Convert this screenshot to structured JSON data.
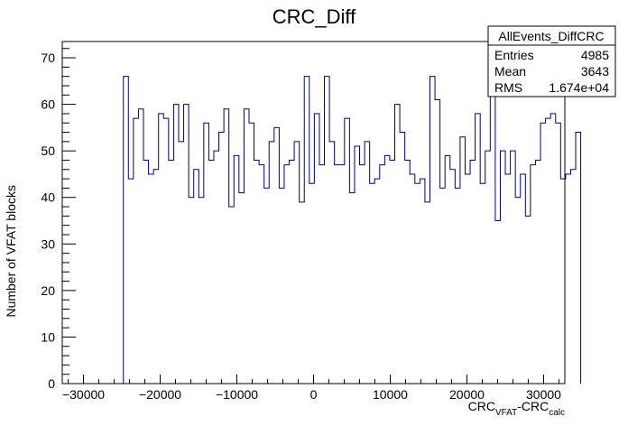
{
  "chart_data": {
    "type": "bar",
    "histogram": true,
    "title": "CRC_Diff",
    "xlabel": {
      "main": "CRC",
      "sub1": "VFAT",
      "mid": "-CRC",
      "sub2": "calc"
    },
    "ylabel": "Number of VFAT blocks",
    "xlim": [
      -32768,
      32768
    ],
    "ylim": [
      0,
      73.5
    ],
    "x_ticks": [
      -30000,
      -20000,
      -10000,
      0,
      10000,
      20000,
      30000
    ],
    "x_tick_labels": [
      "−30000",
      "−20000",
      "−10000",
      "0",
      "10000",
      "20000",
      "30000"
    ],
    "y_ticks": [
      0,
      10,
      20,
      30,
      40,
      50,
      60,
      70
    ],
    "y_tick_labels": [
      "0",
      "10",
      "20",
      "30",
      "40",
      "50",
      "60",
      "70"
    ],
    "grid": false,
    "line_color": "#000080",
    "bin_start": -24800,
    "bin_width": 655.36,
    "values": [
      66,
      44,
      57,
      59,
      48,
      45,
      46,
      58,
      57,
      48,
      60,
      52,
      60,
      40,
      46,
      40,
      56,
      48,
      50,
      54,
      59,
      38,
      49,
      41,
      59,
      56,
      48,
      47,
      42,
      52,
      55,
      42,
      47,
      48,
      52,
      39,
      66,
      43,
      58,
      47,
      66,
      52,
      47,
      47,
      57,
      41,
      51,
      47,
      52,
      43,
      44,
      47,
      49,
      48,
      60,
      54,
      48,
      45,
      43,
      44,
      39,
      66,
      61,
      42,
      49,
      46,
      42,
      53,
      45,
      48,
      58,
      43,
      50,
      70,
      35,
      50,
      45,
      50,
      40,
      45,
      36,
      47,
      48,
      56,
      57,
      58,
      56,
      44,
      45,
      46,
      54
    ],
    "stats_box": {
      "title": "AllEvents_DiffCRC",
      "rows": [
        {
          "label": "Entries",
          "value": "4985"
        },
        {
          "label": "Mean",
          "value": "3643"
        },
        {
          "label": "RMS",
          "value": "1.674e+04"
        }
      ]
    }
  }
}
